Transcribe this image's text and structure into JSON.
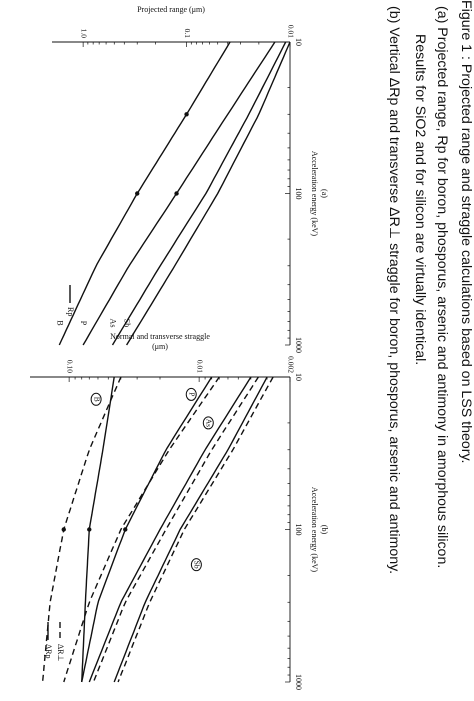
{
  "caption": {
    "lines": [
      "Figure 1 : Projected range and straggle calculations based on LSS theory.",
      "(a)  Projected range, Rp for boron, phosporus, arsenic and antimony in amorphous silicon.",
      "Results for SiO2 and for silicon are virtually identical.",
      "(b) Vertical ΔRp and transverse ΔR⊥ straggle for boron, phosporus, arsenic and antimony."
    ]
  },
  "chart_data": [
    {
      "type": "line",
      "panel_label": "(a)",
      "xlabel": "Acceleration energy (keV)",
      "ylabel": "Projected range (μm)",
      "x_scale": "log",
      "y_scale": "log",
      "xlim": [
        10,
        1000
      ],
      "ylim": [
        0.01,
        2
      ],
      "x_ticks": [
        10,
        100,
        1000
      ],
      "x_tick_labels": [
        "10",
        "100",
        "1000"
      ],
      "y_ticks": [
        0.01,
        0.1,
        1.0
      ],
      "y_tick_labels": [
        "0.01",
        "0.1",
        "1.0"
      ],
      "legend": [
        {
          "label": "Rp",
          "style": "solid"
        }
      ],
      "legend_position": "bottom-right",
      "series": [
        {
          "name": "B",
          "style": "solid",
          "x": [
            10,
            30,
            100,
            300,
            1000
          ],
          "y": [
            0.038,
            0.1,
            0.3,
            0.75,
            1.7
          ],
          "markers": [
            [
              30,
              0.1
            ],
            [
              100,
              0.3
            ]
          ]
        },
        {
          "name": "P",
          "style": "solid",
          "x": [
            10,
            30,
            100,
            300,
            1000
          ],
          "y": [
            0.014,
            0.04,
            0.125,
            0.36,
            1.0
          ],
          "markers": [
            [
              100,
              0.125
            ]
          ]
        },
        {
          "name": "As",
          "style": "solid",
          "x": [
            10,
            30,
            100,
            300,
            1000
          ],
          "y": [
            0.011,
            0.025,
            0.065,
            0.18,
            0.52
          ]
        },
        {
          "name": "Sb",
          "style": "solid",
          "x": [
            10,
            30,
            100,
            300,
            1000
          ],
          "y": [
            0.01,
            0.02,
            0.05,
            0.13,
            0.38
          ]
        }
      ]
    },
    {
      "type": "line",
      "panel_label": "(b)",
      "xlabel": "Acceleration energy (keV)",
      "ylabel_lines": [
        "Normal and transverse straggle",
        "(μm)"
      ],
      "x_scale": "log",
      "y_scale": "log",
      "xlim": [
        10,
        1000
      ],
      "ylim": [
        0.002,
        0.2
      ],
      "x_ticks": [
        10,
        100,
        1000
      ],
      "x_tick_labels": [
        "10",
        "100",
        "1000"
      ],
      "y_ticks": [
        0.002,
        0.01,
        0.1
      ],
      "y_tick_labels": [
        "0.002",
        "0.01",
        "0.10"
      ],
      "legend": [
        {
          "label": "ΔRp",
          "style": "solid"
        },
        {
          "label": "ΔR⊥",
          "style": "dashed"
        }
      ],
      "legend_position": "bottom-right",
      "series": [
        {
          "name": "B",
          "style": "solid",
          "x": [
            10,
            30,
            100,
            300,
            1000
          ],
          "y": [
            0.045,
            0.055,
            0.07,
            0.075,
            0.08
          ],
          "markers": [
            [
              100,
              0.07
            ]
          ]
        },
        {
          "name": "B",
          "style": "dashed",
          "x": [
            10,
            30,
            100,
            300,
            1000
          ],
          "y": [
            0.04,
            0.07,
            0.11,
            0.14,
            0.16
          ],
          "markers": [
            [
              100,
              0.11
            ]
          ]
        },
        {
          "name": "P",
          "style": "solid",
          "x": [
            10,
            30,
            100,
            300,
            1000
          ],
          "y": [
            0.008,
            0.018,
            0.037,
            0.06,
            0.08
          ],
          "markers": [
            [
              100,
              0.037
            ]
          ]
        },
        {
          "name": "P",
          "style": "dashed",
          "x": [
            10,
            30,
            100,
            300,
            1000
          ],
          "y": [
            0.007,
            0.017,
            0.04,
            0.07,
            0.11
          ]
        },
        {
          "name": "As",
          "style": "solid",
          "x": [
            10,
            30,
            100,
            300,
            1000
          ],
          "y": [
            0.004,
            0.009,
            0.02,
            0.04,
            0.07
          ]
        },
        {
          "name": "As",
          "style": "dashed",
          "x": [
            10,
            30,
            100,
            300,
            1000
          ],
          "y": [
            0.0035,
            0.008,
            0.018,
            0.037,
            0.065
          ]
        },
        {
          "name": "Sb",
          "style": "solid",
          "x": [
            10,
            30,
            100,
            300,
            1000
          ],
          "y": [
            0.003,
            0.006,
            0.014,
            0.026,
            0.045
          ]
        },
        {
          "name": "Sb",
          "style": "dashed",
          "x": [
            10,
            30,
            100,
            300,
            1000
          ],
          "y": [
            0.0027,
            0.0055,
            0.013,
            0.024,
            0.042
          ]
        }
      ],
      "curve_labels": [
        {
          "text": "B",
          "x": 14,
          "y": 0.062
        },
        {
          "text": "P",
          "x": 13,
          "y": 0.0115
        },
        {
          "text": "As",
          "x": 20,
          "y": 0.0085
        },
        {
          "text": "Sb",
          "x": 170,
          "y": 0.0105
        }
      ]
    }
  ]
}
